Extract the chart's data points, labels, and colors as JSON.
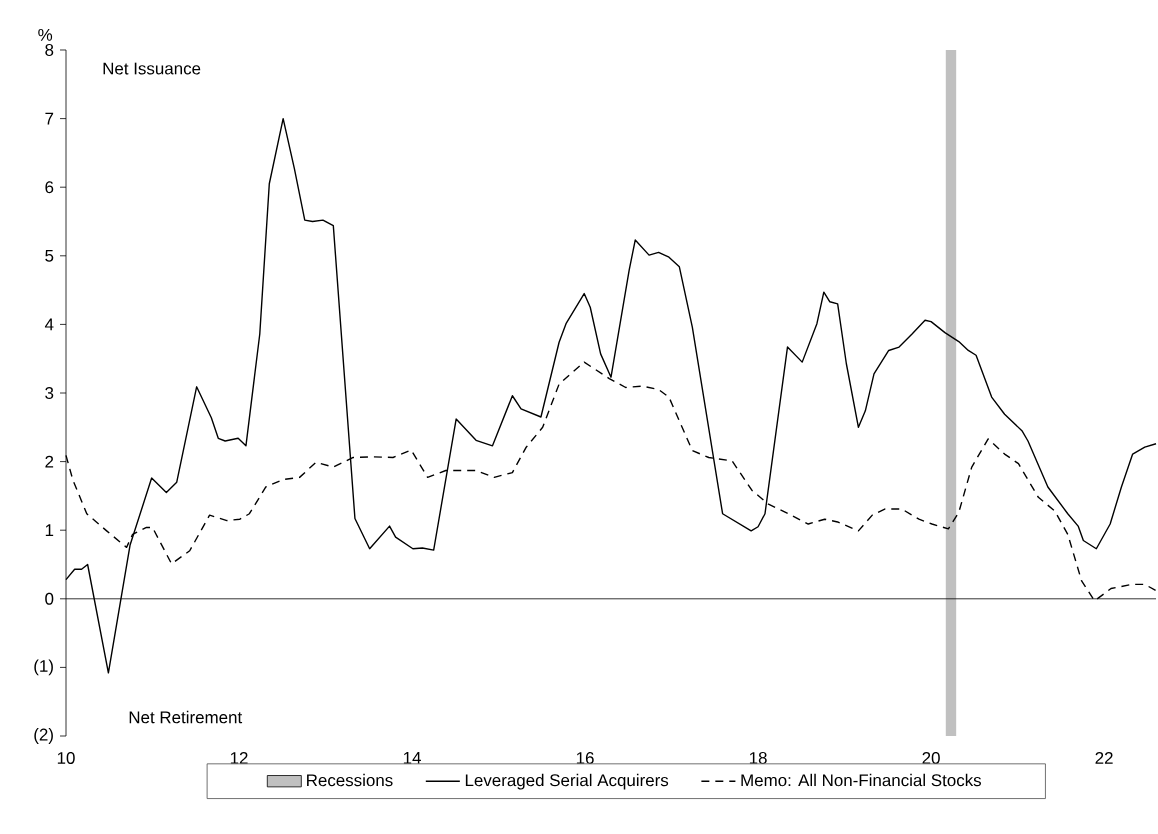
{
  "chart_data": {
    "type": "line",
    "ylabel": "%",
    "annotations": [
      "Net Issuance",
      "Net Retirement"
    ],
    "xlim": [
      10,
      22.6
    ],
    "xticks": [
      10,
      12,
      14,
      16,
      18,
      20,
      22
    ],
    "ylim": [
      -2,
      8
    ],
    "yticks": [
      {
        "value": -2,
        "label": "(2)"
      },
      {
        "value": -1,
        "label": "(1)"
      },
      0,
      1,
      2,
      3,
      4,
      5,
      6,
      7,
      8
    ],
    "legend": "bottom",
    "bands": [
      {
        "axis": "x",
        "from": 20.17,
        "to": 20.29,
        "label": "Recessions",
        "color": "#c0c0c0"
      }
    ],
    "ref_lines": [
      {
        "axis": "y",
        "value": 0,
        "color": "#000000"
      }
    ],
    "series": [
      {
        "name": "Leveraged Serial Acquirers",
        "color": "#000000",
        "line_style": "solid",
        "x": [
          10.0,
          10.1,
          10.18,
          10.25,
          10.49,
          10.74,
          10.99,
          11.16,
          11.28,
          11.51,
          11.68,
          11.76,
          11.84,
          11.99,
          12.08,
          12.24,
          12.35,
          12.51,
          12.64,
          12.76,
          12.85,
          12.97,
          13.09,
          13.34,
          13.51,
          13.74,
          13.81,
          14.01,
          14.12,
          14.25,
          14.51,
          14.74,
          14.93,
          15.16,
          15.26,
          15.49,
          15.7,
          15.78,
          15.99,
          16.06,
          16.18,
          16.3,
          16.51,
          16.58,
          16.74,
          16.85,
          16.97,
          17.09,
          17.24,
          17.59,
          17.92,
          18.0,
          18.08,
          18.34,
          18.51,
          18.68,
          18.76,
          18.83,
          18.92,
          19.02,
          19.16,
          19.24,
          19.34,
          19.51,
          19.63,
          19.78,
          19.93,
          20.0,
          20.16,
          20.32,
          20.43,
          20.52,
          20.7,
          20.85,
          21.05,
          21.12,
          21.35,
          21.58,
          21.7,
          21.76,
          21.91,
          22.07,
          22.2,
          22.33,
          22.47,
          22.6
        ],
        "values": [
          0.28,
          0.43,
          0.43,
          0.5,
          -1.08,
          0.78,
          1.76,
          1.55,
          1.7,
          3.09,
          2.64,
          2.34,
          2.3,
          2.34,
          2.23,
          3.86,
          6.05,
          7.0,
          6.27,
          5.52,
          5.5,
          5.52,
          5.44,
          1.17,
          0.73,
          1.06,
          0.9,
          0.73,
          0.74,
          0.71,
          2.62,
          2.31,
          2.23,
          2.96,
          2.77,
          2.65,
          3.74,
          4.01,
          4.45,
          4.25,
          3.57,
          3.23,
          4.79,
          5.23,
          5.01,
          5.05,
          4.98,
          4.84,
          3.96,
          1.24,
          0.99,
          1.05,
          1.24,
          3.67,
          3.45,
          4.01,
          4.47,
          4.33,
          4.3,
          3.43,
          2.5,
          2.74,
          3.28,
          3.62,
          3.67,
          3.86,
          4.06,
          4.04,
          3.88,
          3.75,
          3.62,
          3.55,
          2.94,
          2.69,
          2.45,
          2.3,
          1.63,
          1.24,
          1.06,
          0.85,
          0.73,
          1.09,
          1.63,
          2.11,
          2.21,
          2.26
        ]
      },
      {
        "name": "Memo: All Non-Financial Stocks",
        "color": "#000000",
        "line_style": "dashed",
        "x": [
          10.0,
          10.08,
          10.24,
          10.47,
          10.7,
          10.77,
          10.93,
          11.0,
          11.22,
          11.43,
          11.66,
          11.86,
          12.01,
          12.12,
          12.31,
          12.51,
          12.7,
          12.89,
          13.09,
          13.32,
          13.55,
          13.78,
          13.99,
          14.18,
          14.39,
          14.53,
          14.74,
          14.95,
          15.16,
          15.32,
          15.51,
          15.7,
          15.99,
          16.28,
          16.47,
          16.66,
          16.85,
          16.97,
          17.24,
          17.43,
          17.7,
          17.93,
          18.12,
          18.35,
          18.58,
          18.77,
          18.92,
          19.16,
          19.32,
          19.47,
          19.66,
          19.86,
          20.01,
          20.2,
          20.32,
          20.47,
          20.66,
          20.85,
          21.01,
          21.24,
          21.43,
          21.58,
          21.74,
          21.89,
          22.08,
          22.32,
          22.47,
          22.6
        ],
        "values": [
          2.09,
          1.73,
          1.24,
          0.99,
          0.75,
          0.94,
          1.04,
          1.04,
          0.51,
          0.7,
          1.22,
          1.14,
          1.16,
          1.24,
          1.63,
          1.74,
          1.77,
          1.99,
          1.92,
          2.06,
          2.07,
          2.06,
          2.17,
          1.77,
          1.87,
          1.87,
          1.87,
          1.77,
          1.84,
          2.21,
          2.5,
          3.13,
          3.45,
          3.21,
          3.08,
          3.1,
          3.05,
          2.94,
          2.16,
          2.06,
          2.01,
          1.58,
          1.38,
          1.24,
          1.09,
          1.16,
          1.12,
          0.99,
          1.22,
          1.31,
          1.31,
          1.16,
          1.09,
          1.02,
          1.26,
          1.92,
          2.33,
          2.11,
          1.97,
          1.48,
          1.28,
          0.94,
          0.26,
          -0.03,
          0.15,
          0.21,
          0.21,
          0.12
        ]
      }
    ]
  }
}
